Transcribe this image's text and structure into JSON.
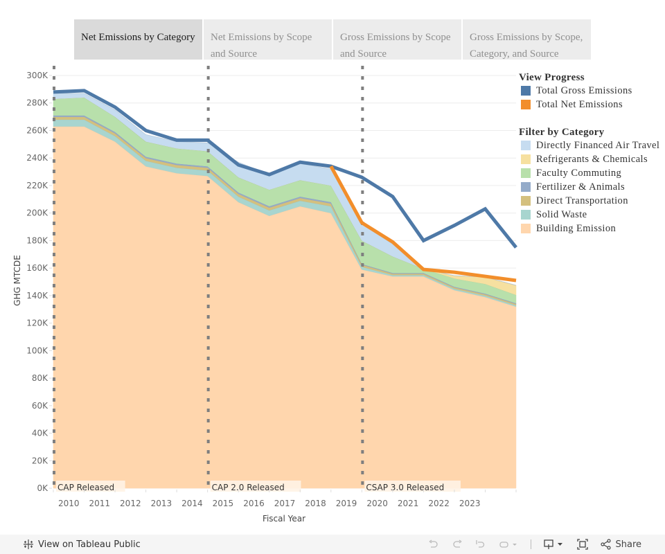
{
  "tabs": [
    {
      "label": "Net Emissions by Category",
      "active": true
    },
    {
      "label": "Net Emissions by Scope and Source",
      "active": false
    },
    {
      "label": "Gross Emissions by Scope and Source",
      "active": false
    },
    {
      "label": "Gross Emissions by Scope, Category, and Source",
      "active": false
    }
  ],
  "legend": {
    "progress_title": "View Progress",
    "progress_items": [
      {
        "label": "Total Gross Emissions",
        "color": "#4e79a7"
      },
      {
        "label": "Total Net Emissions",
        "color": "#f28e2b"
      }
    ],
    "category_title": "Filter by Category",
    "category_items": [
      {
        "label": "Directly Financed Air Travel",
        "color": "#c6dcf0"
      },
      {
        "label": "Refrigerants & Chemicals",
        "color": "#f6e0a0"
      },
      {
        "label": "Faculty Commuting",
        "color": "#b8e0ab"
      },
      {
        "label": "Fertilizer & Animals",
        "color": "#94abc9"
      },
      {
        "label": "Direct Transportation",
        "color": "#d4c07e"
      },
      {
        "label": "Solid Waste",
        "color": "#a8d5cf"
      },
      {
        "label": "Building Emission",
        "color": "#ffd6ad"
      }
    ]
  },
  "footer": {
    "view_label": "View on Tableau Public",
    "share_label": "Share"
  },
  "chart_data": {
    "type": "area",
    "title": "",
    "xlabel": "Fiscal Year",
    "ylabel": "GHG MTCDE",
    "ylim": [
      0,
      300000
    ],
    "yticks": [
      "0K",
      "20K",
      "40K",
      "60K",
      "80K",
      "100K",
      "120K",
      "140K",
      "160K",
      "180K",
      "200K",
      "220K",
      "240K",
      "260K",
      "280K",
      "300K"
    ],
    "xtick_labels": [
      "2010",
      "2011",
      "2012",
      "2013",
      "2014",
      "2015",
      "2016",
      "2017",
      "2018",
      "2019",
      "2020",
      "2021",
      "2022",
      "2023"
    ],
    "x": [
      2009.5,
      2010.5,
      2011.5,
      2012.5,
      2013.5,
      2014.5,
      2015.5,
      2016.5,
      2017.5,
      2018.5,
      2019.5,
      2020.5,
      2021.5,
      2022.5,
      2023.5,
      2024.5
    ],
    "stack_series": [
      {
        "name": "Building Emission",
        "values": [
          263000,
          263000,
          252000,
          234000,
          229000,
          227000,
          208000,
          198000,
          205000,
          200000,
          159000,
          154000,
          154000,
          144000,
          139000,
          132000
        ]
      },
      {
        "name": "Solid Waste",
        "values": [
          5000,
          5000,
          4000,
          4000,
          4000,
          4000,
          4000,
          4000,
          4000,
          5000,
          2000,
          1000,
          1000,
          1000,
          1000,
          1000
        ]
      },
      {
        "name": "Direct Transportation",
        "values": [
          2000,
          2000,
          2000,
          2000,
          2000,
          2000,
          2000,
          2000,
          2000,
          2000,
          1500,
          1000,
          1000,
          1000,
          1000,
          1000
        ]
      },
      {
        "name": "Fertilizer & Animals",
        "values": [
          1000,
          1000,
          1000,
          1000,
          1000,
          1000,
          1000,
          1000,
          1000,
          1000,
          500,
          500,
          500,
          500,
          500,
          500
        ]
      },
      {
        "name": "Faculty Commuting",
        "values": [
          12000,
          13000,
          11000,
          11000,
          11000,
          11000,
          11000,
          12000,
          12000,
          12000,
          17000,
          12000,
          3000,
          6000,
          7000,
          6000
        ]
      },
      {
        "name": "Refrigerants & Chemicals",
        "values": [
          0,
          0,
          0,
          0,
          0,
          0,
          0,
          0,
          0,
          0,
          0,
          0,
          0,
          2000,
          5000,
          7000
        ]
      },
      {
        "name": "Directly Financed Air Travel",
        "values": [
          4000,
          3000,
          5000,
          5000,
          5000,
          6000,
          11000,
          11000,
          12000,
          12000,
          12000,
          9000,
          0,
          0,
          0,
          0
        ]
      }
    ],
    "lines": [
      {
        "name": "Total Gross Emissions",
        "values": [
          288000,
          289000,
          277000,
          260000,
          253000,
          253000,
          235000,
          228000,
          237000,
          234000,
          226000,
          212000,
          180000,
          191000,
          203000,
          175000
        ]
      },
      {
        "name": "Total Net Emissions",
        "values": [
          null,
          null,
          null,
          null,
          null,
          null,
          null,
          null,
          null,
          234000,
          193000,
          179000,
          159000,
          157000,
          154000,
          151000
        ]
      }
    ],
    "annotations": [
      {
        "x": 2009.5,
        "label": "CAP Released"
      },
      {
        "x": 2014.5,
        "label": "CAP 2.0 Released"
      },
      {
        "x": 2019.5,
        "label": "CSAP 3.0 Released"
      }
    ],
    "grid": true,
    "legend_position": "right"
  }
}
